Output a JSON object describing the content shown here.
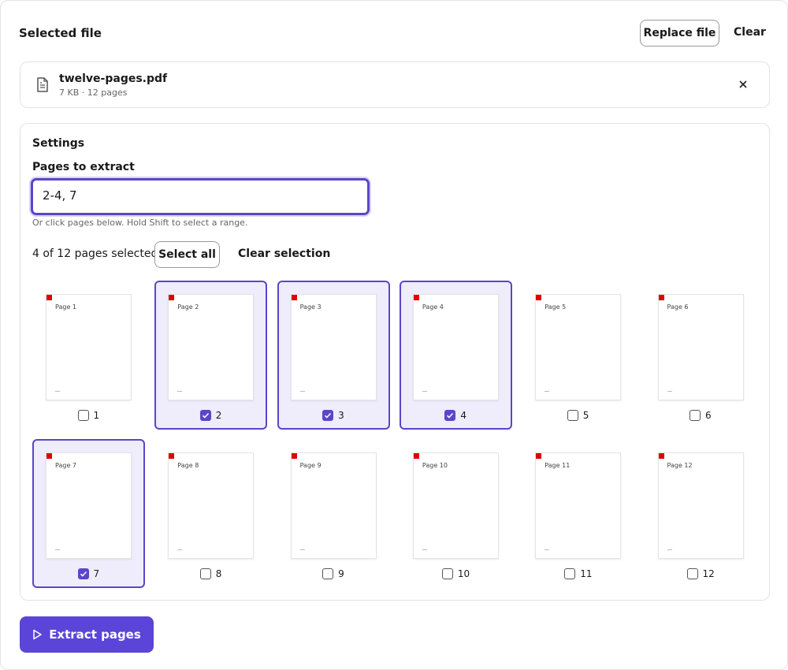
{
  "header": {
    "title": "Selected file",
    "replace": "Replace file",
    "clear": "Clear"
  },
  "file": {
    "name": "twelve-pages.pdf",
    "meta": "7 KB · 12 pages"
  },
  "settings": {
    "title": "Settings",
    "label": "Pages to extract",
    "input": "2-4, 7",
    "hint": "Or click pages below. Hold Shift to select a range.",
    "count": "4 of 12 pages selected",
    "select_all": "Select all",
    "clear_selection": "Clear selection"
  },
  "pages": [
    {
      "label": "Page 1",
      "number": "1",
      "selected": false
    },
    {
      "label": "Page 2",
      "number": "2",
      "selected": true
    },
    {
      "label": "Page 3",
      "number": "3",
      "selected": true
    },
    {
      "label": "Page 4",
      "number": "4",
      "selected": true
    },
    {
      "label": "Page 5",
      "number": "5",
      "selected": false
    },
    {
      "label": "Page 6",
      "number": "6",
      "selected": false
    },
    {
      "label": "Page 7",
      "number": "7",
      "selected": true
    },
    {
      "label": "Page 8",
      "number": "8",
      "selected": false
    },
    {
      "label": "Page 9",
      "number": "9",
      "selected": false
    },
    {
      "label": "Page 10",
      "number": "10",
      "selected": false
    },
    {
      "label": "Page 11",
      "number": "11",
      "selected": false
    },
    {
      "label": "Page 12",
      "number": "12",
      "selected": false
    }
  ],
  "action": "Extract pages"
}
